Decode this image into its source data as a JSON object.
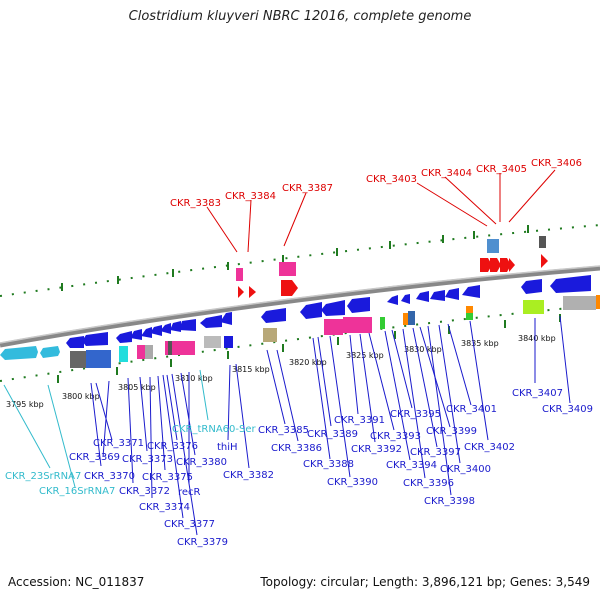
{
  "title": "Clostridium kluyveri NBRC 12016, complete genome",
  "footer": {
    "accession": "Accession: NC_011837",
    "summary": "Topology: circular; Length: 3,896,121 bp; Genes: 3,549"
  },
  "colors": {
    "red": "#dd0000",
    "blue": "#1a1acc",
    "cyan": "#33bbcc",
    "backbone": "#888888",
    "tick": "#1f7a1f"
  },
  "ticks": [
    "3795 kbp",
    "3800 kbp",
    "3805 kbp",
    "3810 kbp",
    "3815 kbp",
    "3820 kbp",
    "3825 kbp",
    "3830 kbp",
    "3835 kbp",
    "3840 kbp"
  ],
  "labels": [
    {
      "text": "CKR_3383",
      "color": "red"
    },
    {
      "text": "CKR_3384",
      "color": "red"
    },
    {
      "text": "CKR_3387",
      "color": "red"
    },
    {
      "text": "CKR_3403",
      "color": "red"
    },
    {
      "text": "CKR_3404",
      "color": "red"
    },
    {
      "text": "CKR_3405",
      "color": "red"
    },
    {
      "text": "CKR_3406",
      "color": "red"
    },
    {
      "text": "CKR_3385",
      "color": "blue"
    },
    {
      "text": "CKR_3386",
      "color": "blue"
    },
    {
      "text": "CKR_3388",
      "color": "blue"
    },
    {
      "text": "CKR_3389",
      "color": "blue"
    },
    {
      "text": "CKR_3390",
      "color": "blue"
    },
    {
      "text": "CKR_3391",
      "color": "blue"
    },
    {
      "text": "CKR_3392",
      "color": "blue"
    },
    {
      "text": "CKR_3393",
      "color": "blue"
    },
    {
      "text": "CKR_3394",
      "color": "blue"
    },
    {
      "text": "CKR_3395",
      "color": "blue"
    },
    {
      "text": "CKR_3396",
      "color": "blue"
    },
    {
      "text": "CKR_3397",
      "color": "blue"
    },
    {
      "text": "CKR_3398",
      "color": "blue"
    },
    {
      "text": "CKR_3399",
      "color": "blue"
    },
    {
      "text": "CKR_3400",
      "color": "blue"
    },
    {
      "text": "CKR_3401",
      "color": "blue"
    },
    {
      "text": "CKR_3402",
      "color": "blue"
    },
    {
      "text": "CKR_3407",
      "color": "blue"
    },
    {
      "text": "CKR_3409",
      "color": "blue"
    },
    {
      "text": "CKR_3369",
      "color": "blue"
    },
    {
      "text": "CKR_3370",
      "color": "blue"
    },
    {
      "text": "CKR_3371",
      "color": "blue"
    },
    {
      "text": "CKR_3372",
      "color": "blue"
    },
    {
      "text": "CKR_3373",
      "color": "blue"
    },
    {
      "text": "CKR_3374",
      "color": "blue"
    },
    {
      "text": "CKR_3375",
      "color": "blue"
    },
    {
      "text": "CKR_3376",
      "color": "blue"
    },
    {
      "text": "CKR_3377",
      "color": "blue"
    },
    {
      "text": "CKR_3379",
      "color": "blue"
    },
    {
      "text": "CKR_3380",
      "color": "blue"
    },
    {
      "text": "CKR_3382",
      "color": "blue"
    },
    {
      "text": "recR",
      "color": "blue"
    },
    {
      "text": "thiH",
      "color": "blue"
    },
    {
      "text": "CKR_tRNA60-Ser",
      "color": "cyan"
    },
    {
      "text": "CKR_23SrRNA7",
      "color": "cyan"
    },
    {
      "text": "CKR_16SrRNA7",
      "color": "cyan"
    }
  ]
}
